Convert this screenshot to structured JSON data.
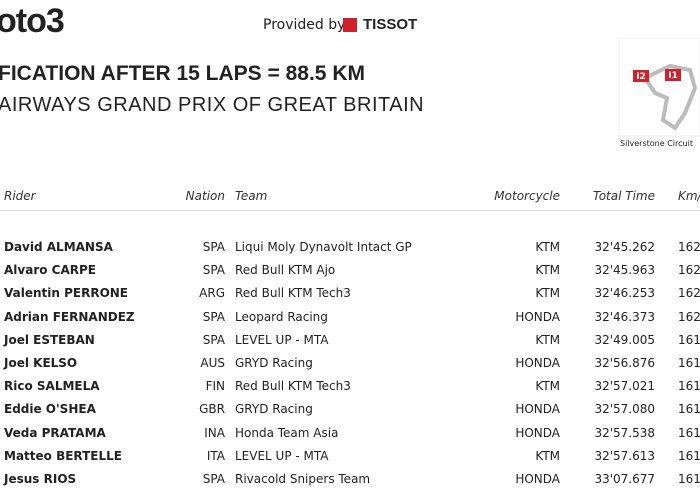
{
  "header": {
    "logo": "oto3",
    "provided_by": "Provided by",
    "sponsor": "TISSOT",
    "title": "FICATION AFTER 15 LAPS = 88.5 KM",
    "subtitle": "AIRWAYS GRAND PRIX OF GREAT BRITAIN"
  },
  "map": {
    "labels": [
      "I2",
      "I1"
    ],
    "caption": "Silverstone Circuit"
  },
  "table": {
    "columns": [
      "Rider",
      "Nation",
      "Team",
      "Motorcycle",
      "Total Time",
      "Km/"
    ],
    "rows": [
      [
        "David ALMANSA",
        "SPA",
        "Liqui Moly Dynavolt Intact GP",
        "KTM",
        "32'45.262",
        "162"
      ],
      [
        "Alvaro CARPE",
        "SPA",
        "Red Bull KTM Ajo",
        "KTM",
        "32'45.963",
        "162"
      ],
      [
        "Valentin PERRONE",
        "ARG",
        "Red Bull KTM Tech3",
        "KTM",
        "32'46.253",
        "162"
      ],
      [
        "Adrian FERNANDEZ",
        "SPA",
        "Leopard Racing",
        "HONDA",
        "32'46.373",
        "162"
      ],
      [
        "Joel ESTEBAN",
        "SPA",
        "LEVEL UP - MTA",
        "KTM",
        "32'49.005",
        "161"
      ],
      [
        "Joel KELSO",
        "AUS",
        "GRYD Racing",
        "HONDA",
        "32'56.876",
        "161"
      ],
      [
        "Rico SALMELA",
        "FIN",
        "Red Bull KTM Tech3",
        "KTM",
        "32'57.021",
        "161"
      ],
      [
        "Eddie O'SHEA",
        "GBR",
        "GRYD Racing",
        "HONDA",
        "32'57.080",
        "161"
      ],
      [
        "Veda PRATAMA",
        "INA",
        "Honda Team Asia",
        "HONDA",
        "32'57.538",
        "161"
      ],
      [
        "Matteo BERTELLE",
        "ITA",
        "LEVEL UP - MTA",
        "KTM",
        "32'57.613",
        "161"
      ],
      [
        "Jesus RIOS",
        "SPA",
        "Rivacold Snipers Team",
        "HONDA",
        "33'07.677",
        "161"
      ]
    ]
  }
}
